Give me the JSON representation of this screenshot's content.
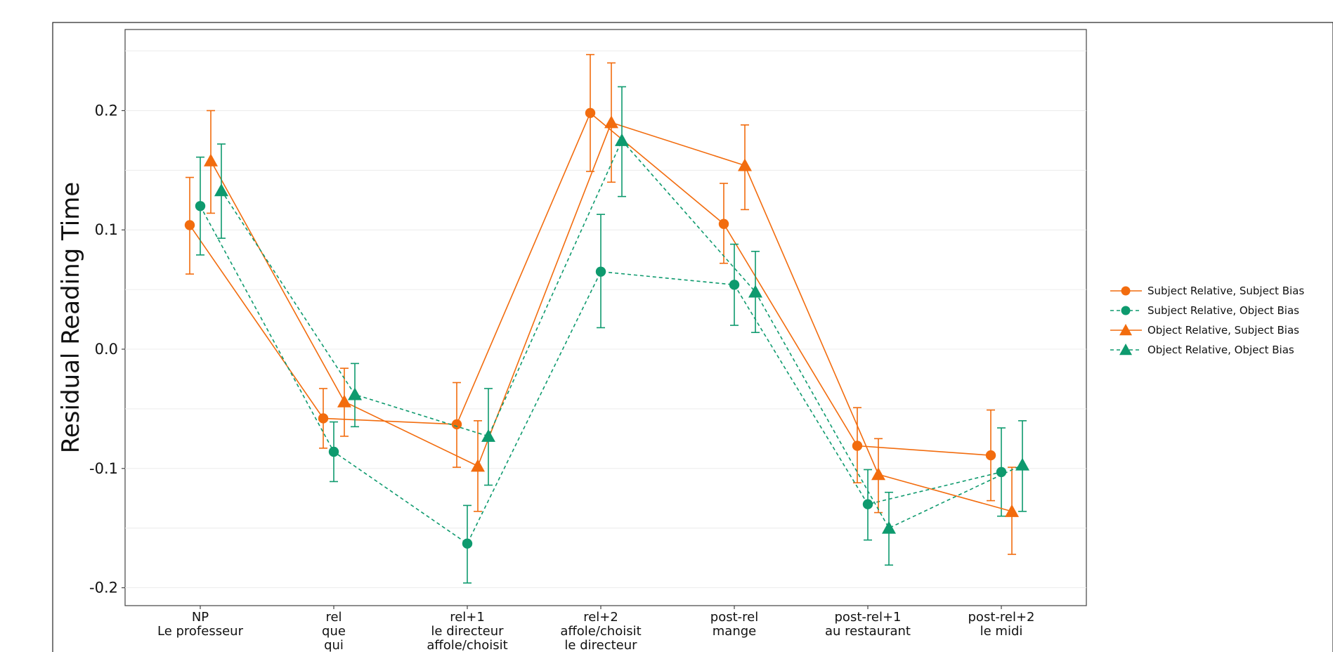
{
  "chart_data": {
    "type": "line",
    "title": "",
    "xlabel": "",
    "ylabel": "Residual Reading Time",
    "ylim": [
      -0.215,
      0.268
    ],
    "yticks": [
      -0.2,
      -0.1,
      0.0,
      0.1,
      0.2
    ],
    "ytick_labels": [
      "-0.2",
      "-0.1",
      "0.0",
      "0.1",
      "0.2"
    ],
    "grid": true,
    "legend_position": "right",
    "categories": [
      [
        "NP",
        "Le professeur"
      ],
      [
        "rel",
        "que",
        "qui"
      ],
      [
        "rel+1",
        "le directeur",
        "affole/choisit"
      ],
      [
        "rel+2",
        "affole/choisit",
        "le directeur"
      ],
      [
        "post-rel",
        "mange"
      ],
      [
        "post-rel+1",
        "au restaurant"
      ],
      [
        "post-rel+2",
        "le midi"
      ]
    ],
    "series": [
      {
        "name": "Subject Relative, Subject Bias",
        "color": "#f26c0e",
        "marker": "circle",
        "dashed": false,
        "values": [
          0.104,
          -0.058,
          -0.063,
          0.198,
          0.105,
          -0.081,
          -0.089
        ],
        "err_low": [
          0.063,
          -0.083,
          -0.099,
          0.149,
          0.072,
          -0.112,
          -0.127
        ],
        "err_high": [
          0.144,
          -0.033,
          -0.028,
          0.247,
          0.139,
          -0.049,
          -0.051
        ]
      },
      {
        "name": "Subject Relative, Object Bias",
        "color": "#0e9a6e",
        "marker": "circle",
        "dashed": true,
        "values": [
          0.12,
          -0.086,
          -0.163,
          0.065,
          0.054,
          -0.13,
          -0.103
        ],
        "err_low": [
          0.079,
          -0.111,
          -0.196,
          0.018,
          0.02,
          -0.16,
          -0.14
        ],
        "err_high": [
          0.161,
          -0.061,
          -0.131,
          0.113,
          0.088,
          -0.101,
          -0.066
        ]
      },
      {
        "name": "Object Relative, Subject Bias",
        "color": "#f26c0e",
        "marker": "triangle",
        "dashed": false,
        "values": [
          0.158,
          -0.044,
          -0.098,
          0.19,
          0.154,
          -0.105,
          -0.136
        ],
        "err_low": [
          0.114,
          -0.073,
          -0.136,
          0.14,
          0.117,
          -0.137,
          -0.172
        ],
        "err_high": [
          0.2,
          -0.016,
          -0.06,
          0.24,
          0.188,
          -0.075,
          -0.099
        ]
      },
      {
        "name": "Object Relative, Object Bias",
        "color": "#0e9a6e",
        "marker": "triangle",
        "dashed": true,
        "values": [
          0.133,
          -0.038,
          -0.073,
          0.175,
          0.048,
          -0.15,
          -0.097
        ],
        "err_low": [
          0.093,
          -0.065,
          -0.114,
          0.128,
          0.014,
          -0.181,
          -0.136
        ],
        "err_high": [
          0.172,
          -0.012,
          -0.033,
          0.22,
          0.082,
          -0.12,
          -0.06
        ]
      }
    ]
  }
}
